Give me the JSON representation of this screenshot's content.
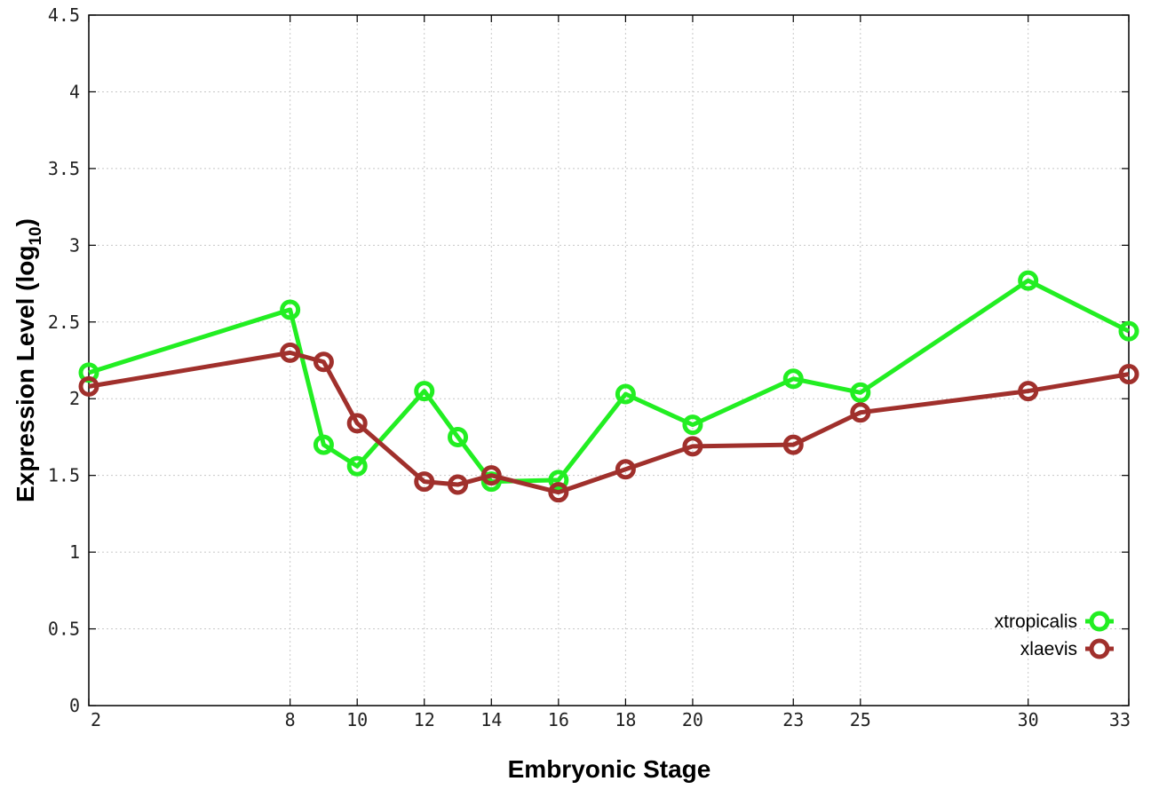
{
  "chart_data": {
    "type": "line",
    "xlabel": "Embryonic Stage",
    "ylabel": "Expression Level (log",
    "ylabel_sub": "10",
    "ylabel_close": ")",
    "ylim": [
      0,
      4.5
    ],
    "xlim": [
      2,
      33
    ],
    "yticks": [
      "0",
      "0.5",
      "1",
      "1.5",
      "2",
      "2.5",
      "3",
      "3.5",
      "4",
      "4.5"
    ],
    "ytick_values": [
      0,
      0.5,
      1,
      1.5,
      2,
      2.5,
      3,
      3.5,
      4,
      4.5
    ],
    "x": [
      2,
      8,
      9,
      10,
      12,
      13,
      14,
      16,
      18,
      20,
      23,
      25,
      30,
      33
    ],
    "xtick_labels": [
      "2",
      "8",
      "10",
      "12",
      "14",
      "16",
      "18",
      "20",
      "23",
      "25",
      "30",
      "33"
    ],
    "xtick_values": [
      2,
      8,
      10,
      12,
      14,
      16,
      18,
      20,
      23,
      25,
      30,
      33
    ],
    "grid": true,
    "legend_position": "bottom-right",
    "series": [
      {
        "name": "xtropicalis",
        "color": "#22ee22",
        "values": [
          2.17,
          2.58,
          1.7,
          1.56,
          2.05,
          1.75,
          1.46,
          1.47,
          2.03,
          1.83,
          2.13,
          2.04,
          2.77,
          2.44
        ]
      },
      {
        "name": "xlaevis",
        "color": "#a0302c",
        "values": [
          2.08,
          2.3,
          2.24,
          1.84,
          1.46,
          1.44,
          1.5,
          1.39,
          1.54,
          1.69,
          1.7,
          1.91,
          2.05,
          2.16
        ]
      }
    ]
  }
}
